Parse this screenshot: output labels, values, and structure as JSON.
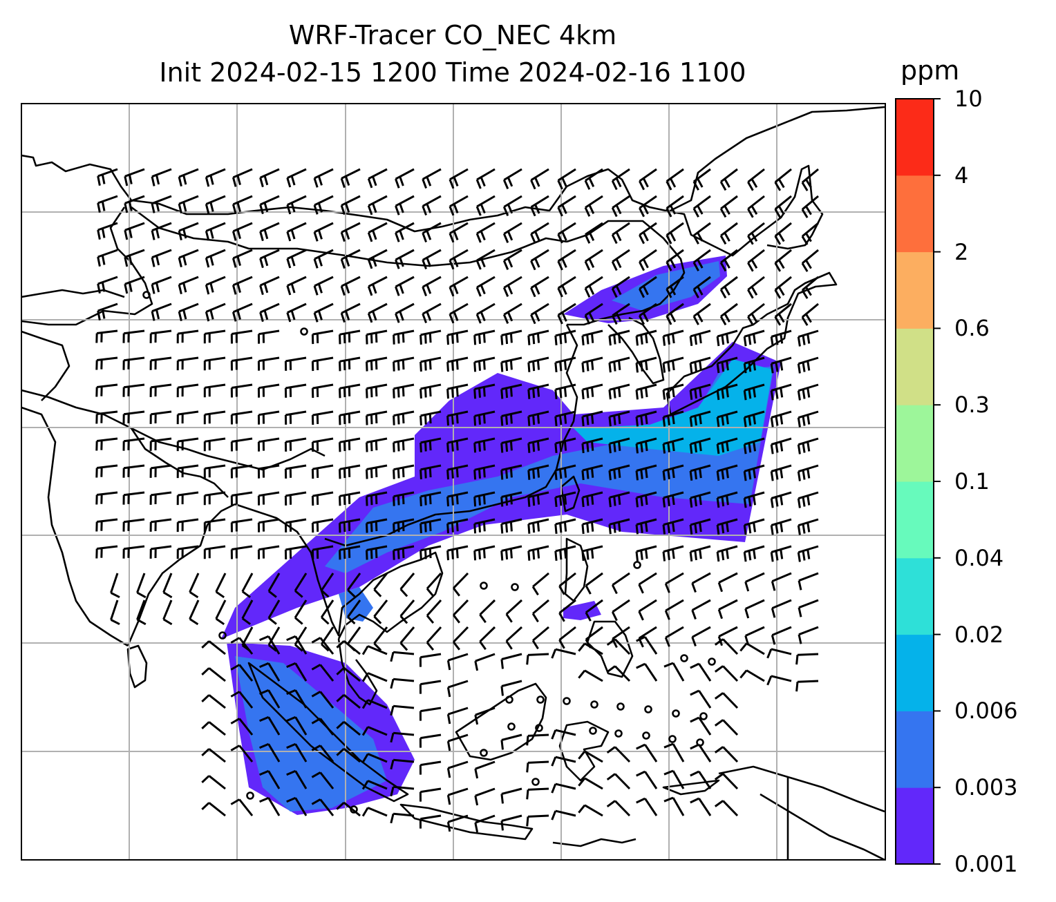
{
  "title": {
    "line1": "WRF-Tracer CO_NEC 4km",
    "line2": "Init 2024-02-15 1200 Time 2024-02-16 1100"
  },
  "colorbar": {
    "unit": "ppm",
    "ticks": [
      "0.001",
      "0.003",
      "0.006",
      "0.02",
      "0.04",
      "0.1",
      "0.3",
      "0.6",
      "2",
      "4",
      "10"
    ],
    "colors": [
      "#6228fa",
      "#3575f0",
      "#05b2ea",
      "#2ee0d8",
      "#67fabc",
      "#9df69a",
      "#d0e087",
      "#fcae60",
      "#fe6f3c",
      "#fc2b18"
    ]
  },
  "map": {
    "gridlines": true,
    "coastline_color": "#000000",
    "grid_color": "#b0b0b0"
  }
}
